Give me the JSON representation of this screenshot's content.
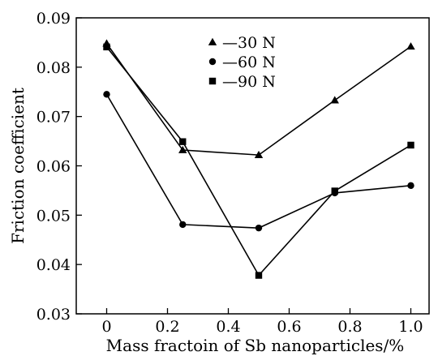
{
  "chart_data": {
    "type": "line",
    "title": "",
    "xlabel": "Mass fractoin of Sb nanoparticles/%",
    "ylabel": "Friction coefficient",
    "xlim": [
      -0.1,
      1.06
    ],
    "ylim": [
      0.03,
      0.09
    ],
    "x_ticks": [
      0,
      0.2,
      0.4,
      0.6,
      0.8,
      1.0
    ],
    "x_tick_labels": [
      "0",
      "0.2",
      "0.4",
      "0.6",
      "0.8",
      "1.0"
    ],
    "y_ticks": [
      0.03,
      0.04,
      0.05,
      0.06,
      0.07,
      0.08,
      0.09
    ],
    "y_tick_labels": [
      "0.03",
      "0.04",
      "0.05",
      "0.06",
      "0.07",
      "0.08",
      "0.09"
    ],
    "grid": false,
    "legend_position": "top-center",
    "x": [
      0,
      0.25,
      0.5,
      0.75,
      1.0
    ],
    "series": [
      {
        "name": "30 N",
        "marker": "triangle",
        "values": [
          0.0848,
          0.0632,
          0.0622,
          0.0733,
          0.0842
        ]
      },
      {
        "name": "60 N",
        "marker": "circle",
        "values": [
          0.0745,
          0.0481,
          0.0474,
          0.0545,
          0.056
        ]
      },
      {
        "name": "90 N",
        "marker": "square",
        "values": [
          0.0841,
          0.0649,
          0.0378,
          0.0549,
          0.0642
        ]
      }
    ],
    "legend": [
      {
        "symbol": "triangle",
        "label": "—30 N"
      },
      {
        "symbol": "circle",
        "label": "—60 N"
      },
      {
        "symbol": "square",
        "label": "—90 N"
      }
    ],
    "colors": {
      "line": "#000000",
      "marker": "#000000"
    }
  }
}
